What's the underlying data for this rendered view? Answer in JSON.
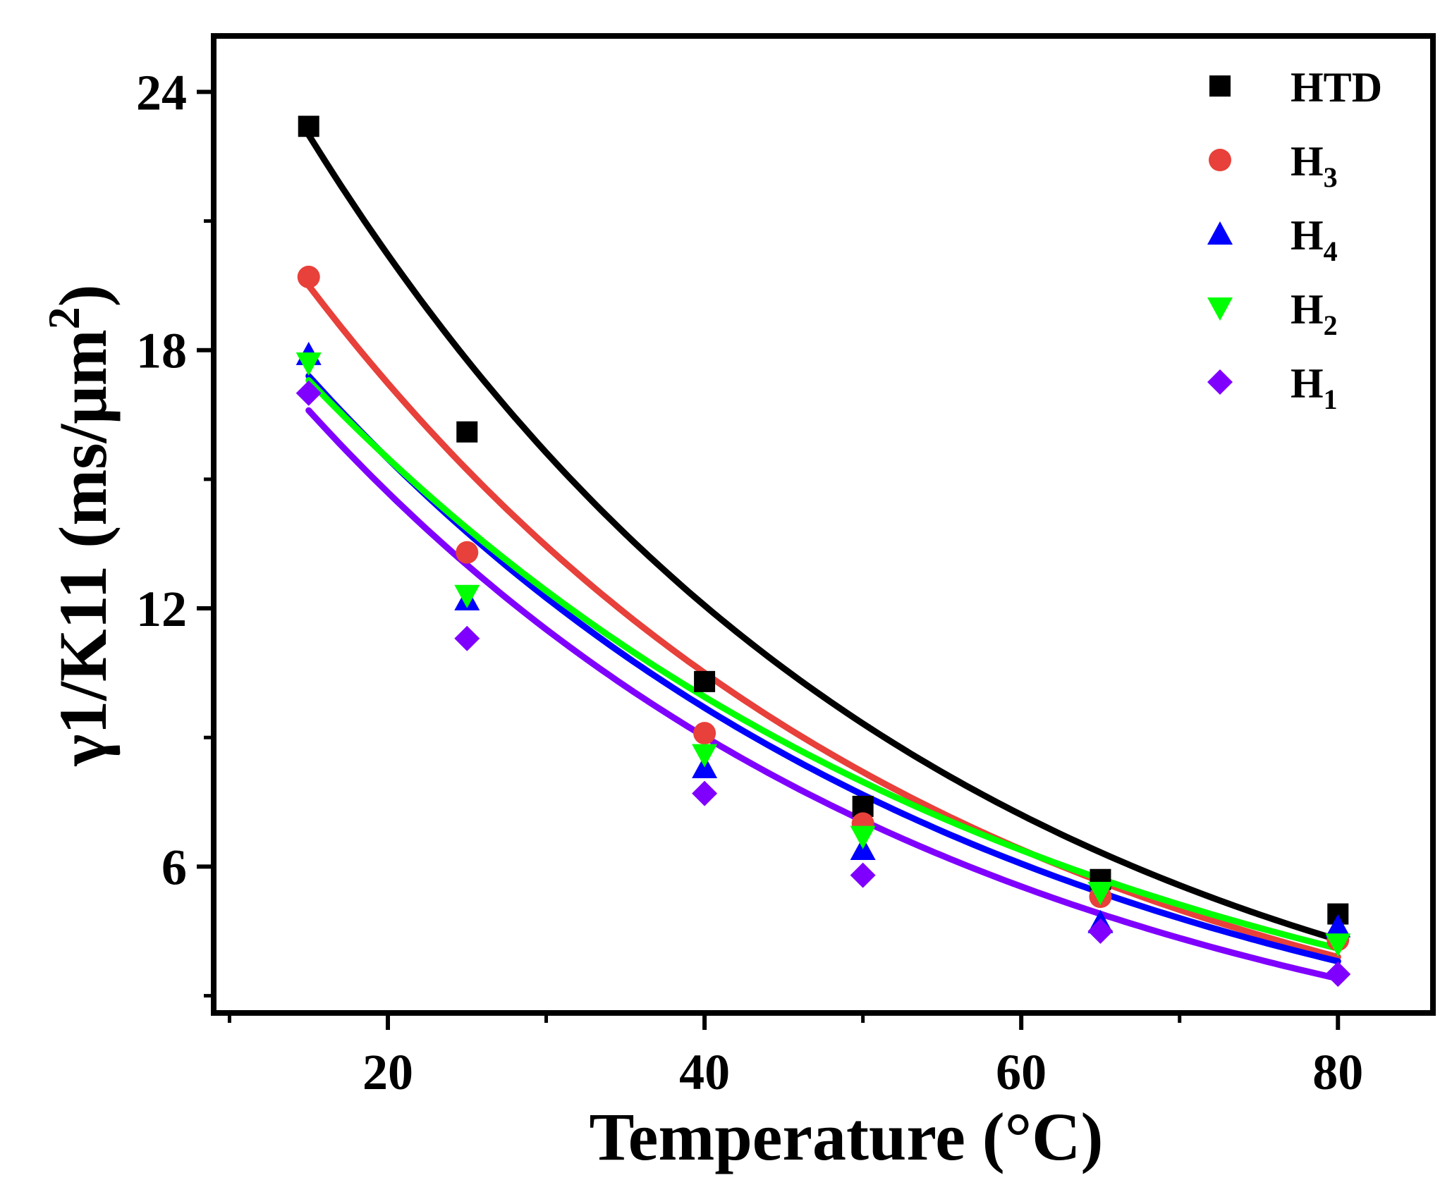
{
  "chart_data": {
    "type": "scatter",
    "title": "",
    "xlabel": "Temperature (°C)",
    "ylabel": "γ1/K11 (ms/μm2)",
    "ylabel_parts": {
      "main": "γ1/K11 (ms/μm",
      "sup": "2",
      "close": ")"
    },
    "xlim": [
      9,
      86
    ],
    "ylim": [
      2.6,
      25.3
    ],
    "x_ticks": [
      20,
      40,
      60,
      80
    ],
    "x_tick_labels": [
      "20",
      "40",
      "60",
      "80"
    ],
    "x_minor_ticks": [
      10,
      30,
      50,
      70
    ],
    "y_ticks": [
      6,
      12,
      18,
      24
    ],
    "y_tick_labels": [
      "6",
      "12",
      "18",
      "24"
    ],
    "y_minor_ticks": [
      3,
      9,
      15,
      21
    ],
    "grid": false,
    "legend_position": "top-right",
    "x": [
      15,
      25,
      40,
      50,
      65,
      80
    ],
    "series": [
      {
        "name": "HTD",
        "label_main": "HTD",
        "label_sub": "",
        "marker": "square",
        "color": "#000000",
        "values": [
          23.2,
          16.1,
          10.3,
          7.4,
          5.7,
          4.9
        ],
        "fit_y_at_15": 23.0,
        "fit_y_at_80": 4.3
      },
      {
        "name": "H3",
        "label_main": "H",
        "label_sub": "3",
        "marker": "circle",
        "color": "#e8403a",
        "values": [
          19.7,
          13.3,
          9.1,
          7.0,
          5.3,
          4.3
        ],
        "fit_y_at_15": 19.5,
        "fit_y_at_80": 3.9
      },
      {
        "name": "H4",
        "label_main": "H",
        "label_sub": "4",
        "marker": "triangle-up",
        "color": "#0000ff",
        "values": [
          17.9,
          12.2,
          8.3,
          6.4,
          4.7,
          4.6
        ],
        "fit_y_at_15": 17.4,
        "fit_y_at_80": 3.8
      },
      {
        "name": "H2",
        "label_main": "H",
        "label_sub": "2",
        "marker": "triangle-down",
        "color": "#00ff00",
        "values": [
          17.7,
          12.3,
          8.6,
          6.7,
          5.4,
          4.2
        ],
        "fit_y_at_15": 17.3,
        "fit_y_at_80": 4.1
      },
      {
        "name": "H1",
        "label_main": "H",
        "label_sub": "1",
        "marker": "diamond",
        "color": "#8000ff",
        "values": [
          17.0,
          11.3,
          7.7,
          5.8,
          4.5,
          3.5
        ],
        "fit_y_at_15": 16.6,
        "fit_y_at_80": 3.4
      }
    ]
  }
}
